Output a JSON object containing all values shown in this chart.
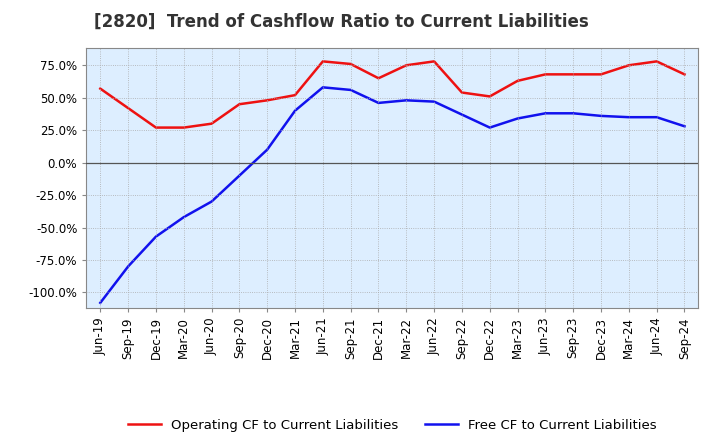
{
  "title": "[2820]  Trend of Cashflow Ratio to Current Liabilities",
  "x_labels": [
    "Jun-19",
    "Sep-19",
    "Dec-19",
    "Mar-20",
    "Jun-20",
    "Sep-20",
    "Dec-20",
    "Mar-21",
    "Jun-21",
    "Sep-21",
    "Dec-21",
    "Mar-22",
    "Jun-22",
    "Sep-22",
    "Dec-22",
    "Mar-23",
    "Jun-23",
    "Sep-23",
    "Dec-23",
    "Mar-24",
    "Jun-24",
    "Sep-24"
  ],
  "operating_cf": [
    0.57,
    0.42,
    0.27,
    0.27,
    0.3,
    0.45,
    0.48,
    0.52,
    0.78,
    0.76,
    0.65,
    0.75,
    0.78,
    0.54,
    0.51,
    0.63,
    0.68,
    0.68,
    0.68,
    0.75,
    0.78,
    0.68
  ],
  "free_cf": [
    -1.08,
    -0.8,
    -0.57,
    -0.42,
    -0.3,
    -0.1,
    0.1,
    0.4,
    0.58,
    0.56,
    0.46,
    0.48,
    0.47,
    0.37,
    0.27,
    0.34,
    0.38,
    0.38,
    0.36,
    0.35,
    0.35,
    0.28
  ],
  "operating_color": "#ee1111",
  "free_color": "#1111ee",
  "ylim": [
    -1.12,
    0.88
  ],
  "yticks": [
    -1.0,
    -0.75,
    -0.5,
    -0.25,
    0.0,
    0.25,
    0.5,
    0.75
  ],
  "ytick_labels": [
    "-100.0%",
    "-75.0%",
    "-50.0%",
    "-25.0%",
    "0.0%",
    "25.0%",
    "50.0%",
    "75.0%"
  ],
  "background_color": "#ffffff",
  "plot_bg_color": "#ddeeff",
  "grid_color": "#aaaaaa",
  "legend_op": "Operating CF to Current Liabilities",
  "legend_free": "Free CF to Current Liabilities",
  "title_fontsize": 12,
  "tick_fontsize": 8.5,
  "line_width": 1.8
}
